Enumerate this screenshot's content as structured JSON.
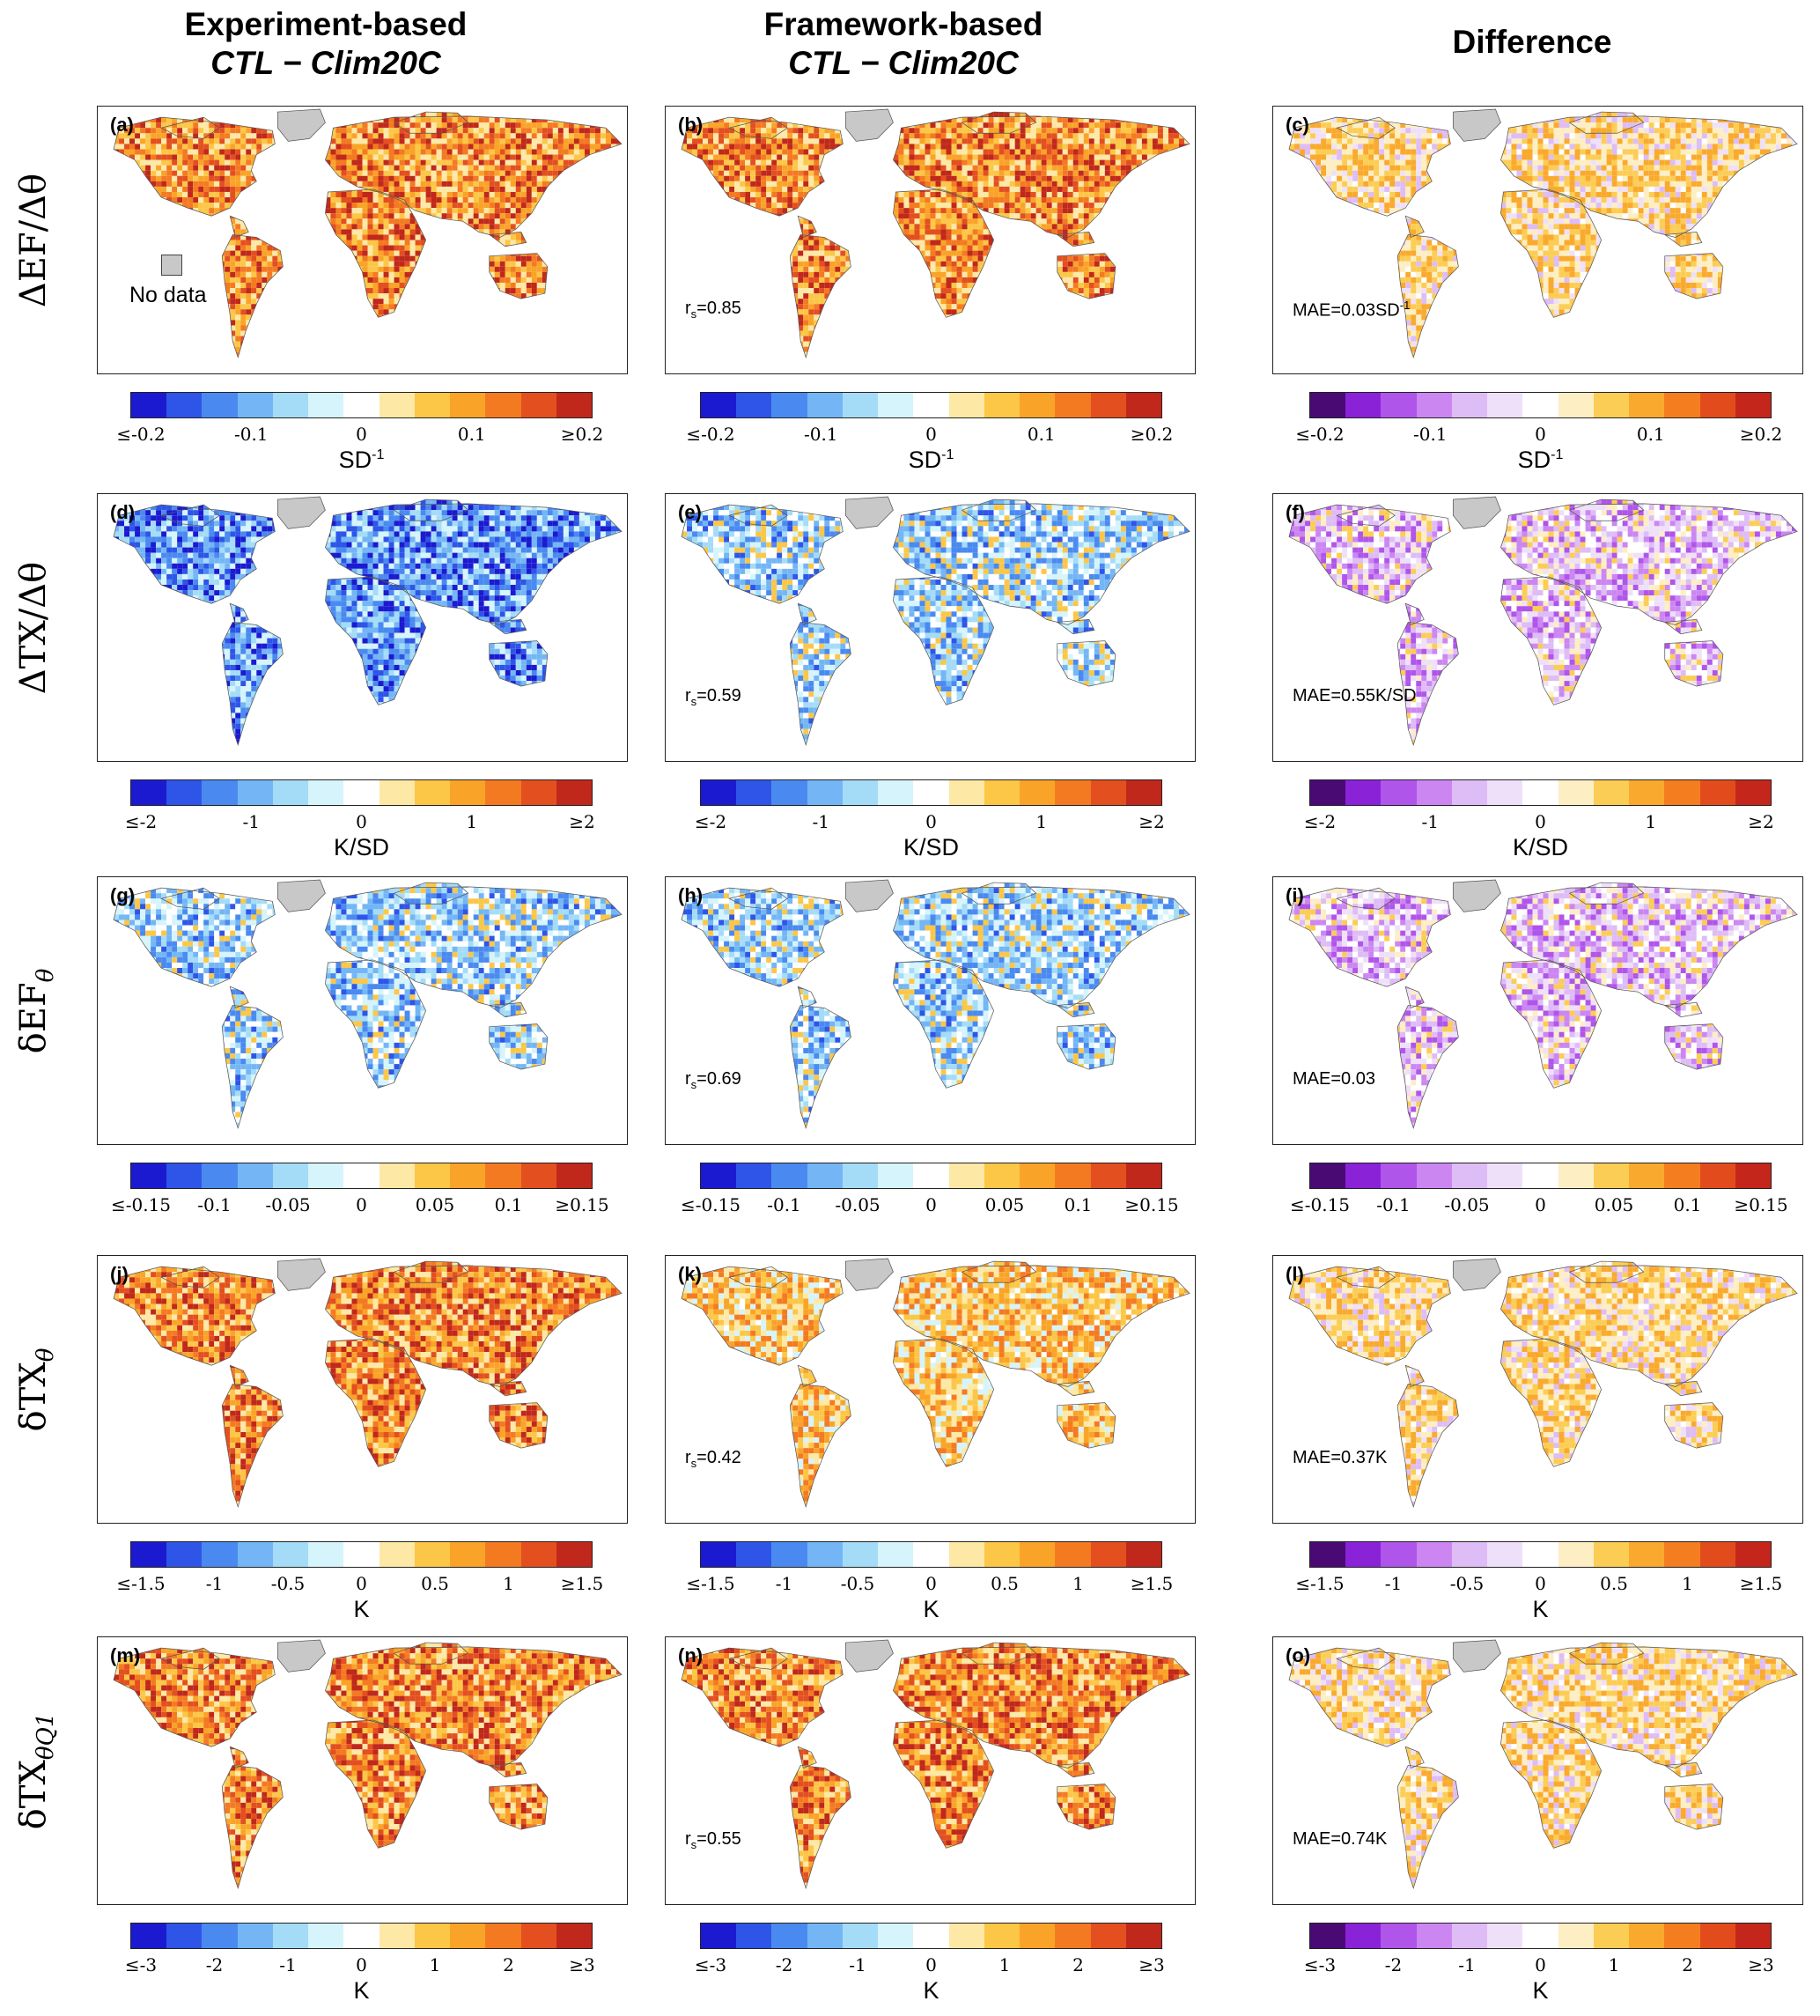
{
  "columns": [
    {
      "title": "Experiment-based",
      "subtitle": "CTL − Clim20C"
    },
    {
      "title": "Framework-based",
      "subtitle": "CTL − Clim20C"
    },
    {
      "title": "Difference",
      "subtitle": ""
    }
  ],
  "rows": [
    {
      "label_html": "ΔEF/Δθ",
      "panels": [
        "(a)",
        "(b)",
        "(c)"
      ],
      "stats": [
        "",
        "r_s=0.85",
        "MAE=0.03SD^-1"
      ],
      "ticks": [
        "≤-0.2",
        "-0.1",
        "0",
        "0.1",
        "≥0.2"
      ],
      "unit": "SD^-1",
      "patterns": [
        "warm",
        "warm",
        "diffwarm"
      ]
    },
    {
      "label_html": "ΔTX/Δθ",
      "panels": [
        "(d)",
        "(e)",
        "(f)"
      ],
      "stats": [
        "",
        "r_s=0.59",
        "MAE=0.55K/SD"
      ],
      "ticks": [
        "≤-2",
        "-1",
        "0",
        "1",
        "≥2"
      ],
      "unit": "K/SD",
      "patterns": [
        "cool",
        "coolmild",
        "diffcool"
      ]
    },
    {
      "label_html": "δEF_θ",
      "panels": [
        "(g)",
        "(h)",
        "(i)"
      ],
      "stats": [
        "",
        "r_s=0.69",
        "MAE=0.03"
      ],
      "ticks": [
        "≤-0.15",
        "-0.1",
        "-0.05",
        "0",
        "0.05",
        "0.1",
        "≥0.15"
      ],
      "unit": "",
      "patterns": [
        "coolmild",
        "coolmild",
        "diffcool"
      ]
    },
    {
      "label_html": "δTX_θ",
      "panels": [
        "(j)",
        "(k)",
        "(l)"
      ],
      "stats": [
        "",
        "r_s=0.42",
        "MAE=0.37K"
      ],
      "ticks": [
        "≤-1.5",
        "-1",
        "-0.5",
        "0",
        "0.5",
        "1",
        "≥1.5"
      ],
      "unit": "K",
      "patterns": [
        "warm",
        "warmmild",
        "diffwarm"
      ]
    },
    {
      "label_html": "δTX_θQ1",
      "panels": [
        "(m)",
        "(n)",
        "(o)"
      ],
      "stats": [
        "",
        "r_s=0.55",
        "MAE=0.74K"
      ],
      "ticks": [
        "≤-3",
        "-2",
        "-1",
        "0",
        "1",
        "2",
        "≥3"
      ],
      "unit": "K",
      "patterns": [
        "warm",
        "warm",
        "diffwarm"
      ]
    }
  ],
  "nodata_label": "No data",
  "colors": {
    "blue_red": [
      "#1c1ad0",
      "#2e55e8",
      "#4a8af0",
      "#74b6f5",
      "#a4dcf8",
      "#d6f4fb",
      "#ffffff",
      "#fde8a6",
      "#fcc647",
      "#f9a428",
      "#f47a22",
      "#e34f1f",
      "#c0281b"
    ],
    "purple_red": [
      "#4a0a74",
      "#8a22d8",
      "#b055ea",
      "#cc86f2",
      "#debcf6",
      "#efe0fa",
      "#ffffff",
      "#fdeec4",
      "#fccd55",
      "#f9aa2e",
      "#f47d20",
      "#e24c1d",
      "#c4261b"
    ],
    "no_data": "#c8c8c8"
  }
}
